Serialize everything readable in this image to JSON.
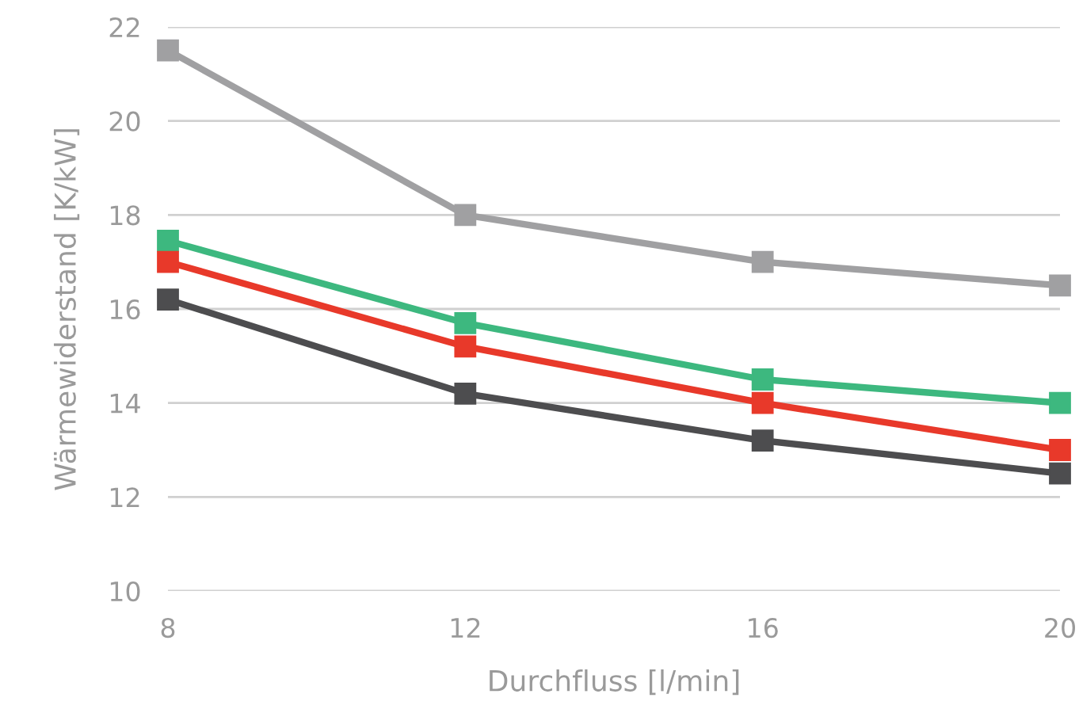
{
  "chart_data": {
    "type": "line",
    "xlabel": "Durchfluss [l/min]",
    "ylabel": "Wärmewiderstand [K/kW]",
    "x": [
      8,
      12,
      16,
      20
    ],
    "xlim": [
      8,
      20
    ],
    "xticks": [
      8,
      12,
      16,
      20
    ],
    "ylim": [
      10,
      22
    ],
    "yticks": [
      10,
      12,
      14,
      16,
      18,
      20,
      22
    ],
    "grid": "y",
    "marker": "square",
    "line_style": "solid",
    "series": [
      {
        "color": "#a0a0a2",
        "values": [
          21.5,
          18,
          17,
          16.5
        ]
      },
      {
        "color": "#3db87f",
        "values": [
          17.45,
          15.7,
          14.5,
          14
        ]
      },
      {
        "color": "#e8392a",
        "values": [
          17,
          15.2,
          14,
          13
        ]
      },
      {
        "color": "#4d4d4f",
        "values": [
          16.2,
          14.2,
          13.2,
          12.5
        ]
      }
    ]
  }
}
